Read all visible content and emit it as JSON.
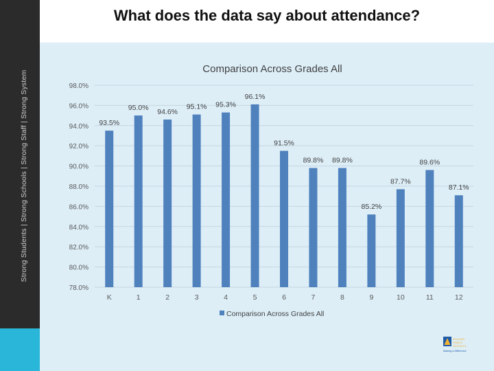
{
  "slide": {
    "heading": "What does the data say about attendance?",
    "tagline": "Strong Students  |  Strong Schools  |  Strong Staff  |  Strong System"
  },
  "logo": {
    "lines": [
      "ATLANTA",
      "PUBLIC",
      "SCHOOLS"
    ],
    "motto": "Making a Difference"
  },
  "colors": {
    "bar": "#4f81bd",
    "panel": "#ddeef7",
    "sidebar": "#2b2b2b",
    "accent": "#29b6d8"
  },
  "chart_data": {
    "type": "bar",
    "title": "Comparison Across Grades All",
    "categories": [
      "K",
      "1",
      "2",
      "3",
      "4",
      "5",
      "6",
      "7",
      "8",
      "9",
      "10",
      "11",
      "12"
    ],
    "series": [
      {
        "name": "Comparison Across Grades All",
        "values": [
          93.5,
          95.0,
          94.6,
          95.1,
          95.3,
          96.1,
          91.5,
          89.8,
          89.8,
          85.2,
          87.7,
          89.6,
          87.1
        ]
      }
    ],
    "data_labels": [
      "93.5%",
      "95.0%",
      "94.6%",
      "95.1%",
      "95.3%",
      "96.1%",
      "91.5%",
      "89.8%",
      "89.8%",
      "85.2%",
      "87.7%",
      "89.6%",
      "87.1%"
    ],
    "ylim": [
      78,
      98
    ],
    "yticks": [
      "78.0%",
      "80.0%",
      "82.0%",
      "84.0%",
      "86.0%",
      "88.0%",
      "90.0%",
      "92.0%",
      "94.0%",
      "96.0%",
      "98.0%"
    ],
    "grid": true,
    "legend": "bottom"
  }
}
